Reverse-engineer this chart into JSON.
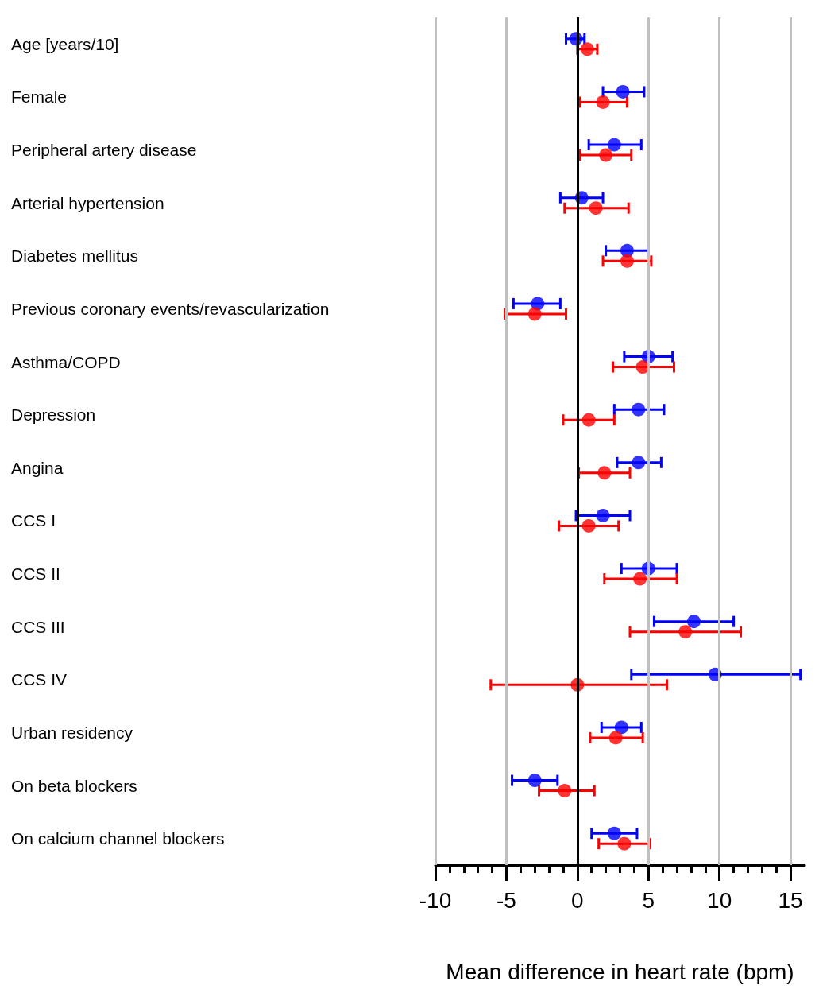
{
  "chart_data": {
    "type": "scatter",
    "orientation": "horizontal",
    "xlabel": "Mean difference in heart rate (bpm)",
    "categories": [
      "Age [years/10]",
      "Female",
      "Peripheral artery disease",
      "Arterial hypertension",
      "Diabetes mellitus",
      "Previous coronary events/revascularization",
      "Asthma/COPD",
      "Depression",
      "Angina",
      "CCS I",
      "CCS II",
      "CCS III",
      "CCS IV",
      "Urban residency",
      "On beta blockers",
      "On calcium channel blockers"
    ],
    "series": [
      {
        "color": "#0000ff",
        "values": [
          -0.1,
          3.2,
          2.6,
          0.3,
          3.5,
          -2.8,
          5.0,
          4.3,
          4.3,
          1.8,
          5.0,
          8.2,
          9.7,
          3.1,
          -3.0,
          2.6
        ],
        "errors": [
          [
            -0.8,
            0.5
          ],
          [
            1.8,
            4.7
          ],
          [
            0.8,
            4.5
          ],
          [
            -1.2,
            1.8
          ],
          [
            2.0,
            5.0
          ],
          [
            -4.5,
            -1.2
          ],
          [
            3.3,
            6.7
          ],
          [
            2.6,
            6.1
          ],
          [
            2.8,
            5.9
          ],
          [
            -0.1,
            3.7
          ],
          [
            3.1,
            7.0
          ],
          [
            5.4,
            11.0
          ],
          [
            3.8,
            15.7
          ],
          [
            1.7,
            4.5
          ],
          [
            -4.6,
            -1.4
          ],
          [
            1.0,
            4.2
          ]
        ]
      },
      {
        "color": "#ff0000",
        "values": [
          0.7,
          1.8,
          2.0,
          1.3,
          3.5,
          -3.0,
          4.6,
          0.8,
          1.9,
          0.8,
          4.4,
          7.6,
          0.0,
          2.7,
          -0.9,
          3.3
        ],
        "errors": [
          [
            0.0,
            1.4
          ],
          [
            0.2,
            3.5
          ],
          [
            0.2,
            3.8
          ],
          [
            -0.9,
            3.6
          ],
          [
            1.8,
            5.2
          ],
          [
            -5.1,
            -0.8
          ],
          [
            2.5,
            6.8
          ],
          [
            -1.0,
            2.6
          ],
          [
            0.1,
            3.7
          ],
          [
            -1.3,
            2.9
          ],
          [
            1.9,
            7.0
          ],
          [
            3.7,
            11.5
          ],
          [
            -6.1,
            6.3
          ],
          [
            0.9,
            4.6
          ],
          [
            -2.7,
            1.2
          ],
          [
            1.5,
            5.1
          ]
        ]
      }
    ],
    "xlim": [
      -10,
      16
    ],
    "xticks": [
      -10,
      {
        "value": -9,
        "label": null
      },
      {
        "value": -8,
        "label": null
      },
      {
        "value": -7,
        "label": null
      },
      {
        "value": -6,
        "label": null
      },
      -5,
      {
        "value": -4,
        "label": null
      },
      {
        "value": -3,
        "label": null
      },
      {
        "value": -2,
        "label": null
      },
      {
        "value": -1,
        "label": null
      },
      0,
      {
        "value": 1,
        "label": null
      },
      {
        "value": 2,
        "label": null
      },
      {
        "value": 3,
        "label": null
      },
      {
        "value": 4,
        "label": null
      },
      5,
      {
        "value": 6,
        "label": null
      },
      {
        "value": 7,
        "label": null
      },
      {
        "value": 8,
        "label": null
      },
      {
        "value": 9,
        "label": null
      },
      10,
      {
        "value": 11,
        "label": null
      },
      {
        "value": 12,
        "label": null
      },
      {
        "value": 13,
        "label": null
      },
      {
        "value": 14,
        "label": null
      },
      15
    ],
    "ref_lines": [
      {
        "axis": "x",
        "value": 0,
        "color": "#000000"
      }
    ],
    "grid": "x",
    "marker": "circle"
  }
}
